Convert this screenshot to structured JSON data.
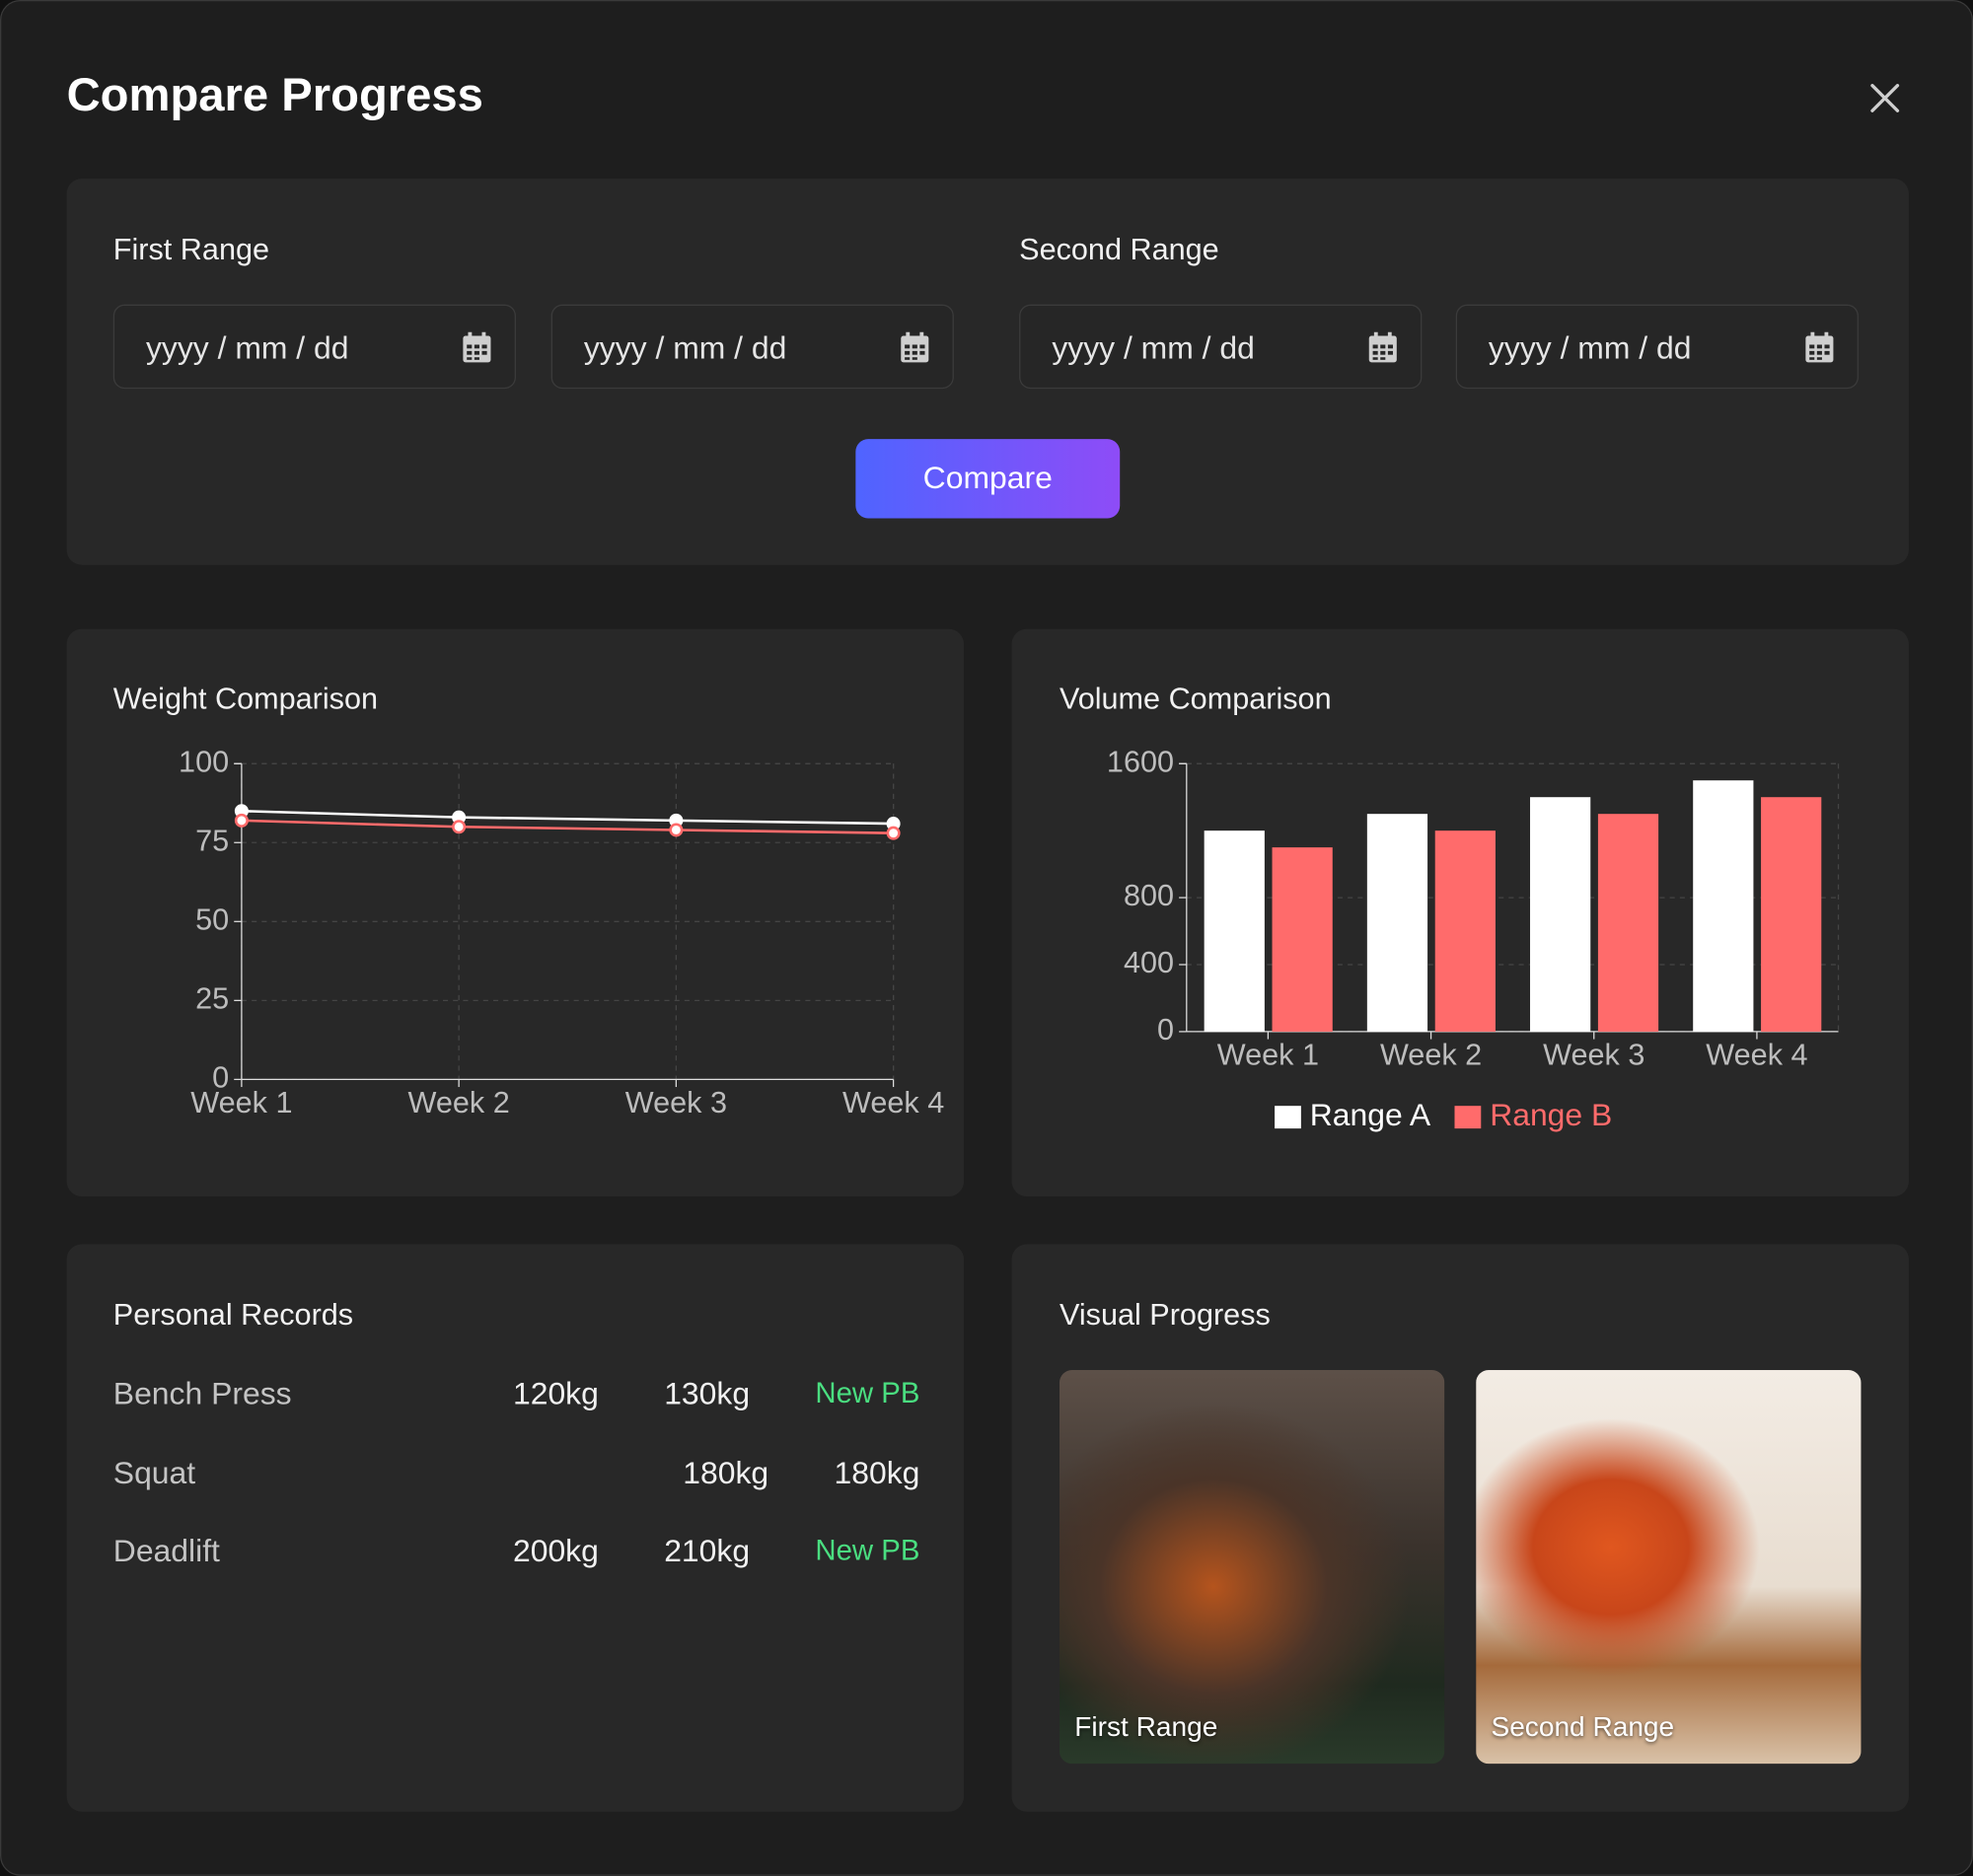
{
  "header": {
    "title": "Compare Progress"
  },
  "date_ranges": [
    {
      "label": "First Range",
      "inputs": [
        "yyyy / mm / dd",
        "yyyy / mm / dd"
      ]
    },
    {
      "label": "Second Range",
      "inputs": [
        "yyyy / mm / dd",
        "yyyy / mm / dd"
      ]
    }
  ],
  "compare_button": "Compare",
  "chart_data": [
    {
      "type": "line",
      "title": "Weight Comparison",
      "categories": [
        "Week 1",
        "Week 2",
        "Week 3",
        "Week 4"
      ],
      "series": [
        {
          "color": "#ffffff",
          "values": [
            85,
            83,
            82,
            81
          ]
        },
        {
          "color": "#ff6b6b",
          "values": [
            82,
            80,
            79,
            78
          ]
        }
      ],
      "ylim": [
        0,
        100
      ],
      "yticks": [
        0,
        25,
        50,
        75,
        100
      ],
      "grid": true
    },
    {
      "type": "bar",
      "title": "Volume Comparison",
      "categories": [
        "Week 1",
        "Week 2",
        "Week 3",
        "Week 4"
      ],
      "series": [
        {
          "name": "Range A",
          "color": "#ffffff",
          "values": [
            1200,
            1300,
            1400,
            1500
          ]
        },
        {
          "name": "Range B",
          "color": "#ff6b6b",
          "values": [
            1100,
            1200,
            1300,
            1400
          ]
        }
      ],
      "ylim": [
        0,
        1600
      ],
      "yticks": [
        0,
        400,
        800,
        1600
      ],
      "grid": true,
      "legend": "bottom"
    }
  ],
  "personal_records": {
    "title": "Personal Records",
    "rows": [
      [
        "Bench Press",
        "120kg",
        "130kg",
        "New PB"
      ],
      [
        "Squat",
        "180kg",
        "180kg"
      ],
      [
        "Deadlift",
        "200kg",
        "210kg",
        "New PB"
      ]
    ]
  },
  "visual_progress": {
    "title": "Visual Progress",
    "images": [
      {
        "caption": "First Range"
      },
      {
        "caption": "Second Range"
      }
    ]
  }
}
